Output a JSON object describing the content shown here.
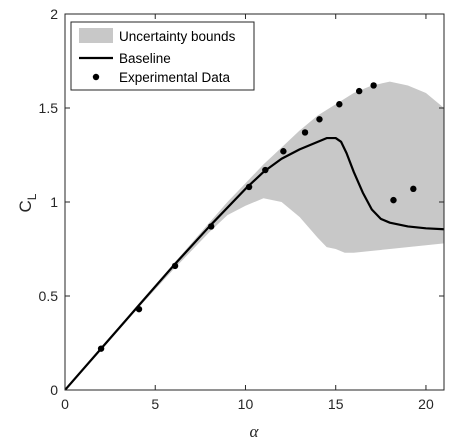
{
  "chart_data": {
    "type": "line",
    "xlabel": "α",
    "ylabel": "C",
    "ylabel_subscript": "L",
    "xlim": [
      0,
      21
    ],
    "ylim": [
      0,
      2
    ],
    "xticks": [
      "0",
      "5",
      "10",
      "15",
      "20"
    ],
    "yticks": [
      "0",
      "0.5",
      "1",
      "1.5",
      "2"
    ],
    "grid": false,
    "legend_position": "top-left",
    "colors": {
      "band": "#c8c8c8",
      "baseline": "#000000",
      "experimental": "#000000",
      "axis": "#262626"
    },
    "series": [
      {
        "name": "Uncertainty bounds",
        "kind": "band",
        "x": [
          0,
          2,
          4,
          6,
          8,
          9,
          10,
          11,
          12,
          13,
          14,
          14.5,
          15,
          15.5,
          16,
          17,
          18,
          19,
          20,
          21
        ],
        "upper": [
          0,
          0.22,
          0.45,
          0.67,
          0.89,
          1.0,
          1.1,
          1.2,
          1.29,
          1.38,
          1.46,
          1.49,
          1.52,
          1.55,
          1.58,
          1.62,
          1.64,
          1.62,
          1.58,
          1.5
        ],
        "lower": [
          0,
          0.21,
          0.43,
          0.64,
          0.84,
          0.93,
          0.98,
          1.02,
          1.0,
          0.92,
          0.81,
          0.76,
          0.75,
          0.73,
          0.73,
          0.74,
          0.75,
          0.76,
          0.77,
          0.78
        ]
      },
      {
        "name": "Baseline",
        "kind": "line",
        "x": [
          0,
          2,
          4,
          6,
          8,
          10,
          11,
          12,
          13,
          14,
          14.5,
          15,
          15.3,
          15.6,
          16,
          16.5,
          17,
          17.5,
          18,
          19,
          20,
          21
        ],
        "y": [
          0,
          0.22,
          0.44,
          0.66,
          0.87,
          1.07,
          1.16,
          1.23,
          1.28,
          1.32,
          1.34,
          1.34,
          1.32,
          1.26,
          1.16,
          1.05,
          0.96,
          0.91,
          0.89,
          0.87,
          0.86,
          0.855
        ]
      },
      {
        "name": "Experimental Data",
        "kind": "scatter",
        "x": [
          2,
          4.1,
          6.1,
          8.1,
          10.2,
          11.1,
          12.1,
          13.3,
          14.1,
          15.2,
          16.3,
          17.1,
          18.2,
          19.3
        ],
        "y": [
          0.22,
          0.43,
          0.66,
          0.87,
          1.08,
          1.17,
          1.27,
          1.37,
          1.44,
          1.52,
          1.59,
          1.62,
          1.01,
          1.07
        ]
      }
    ]
  }
}
